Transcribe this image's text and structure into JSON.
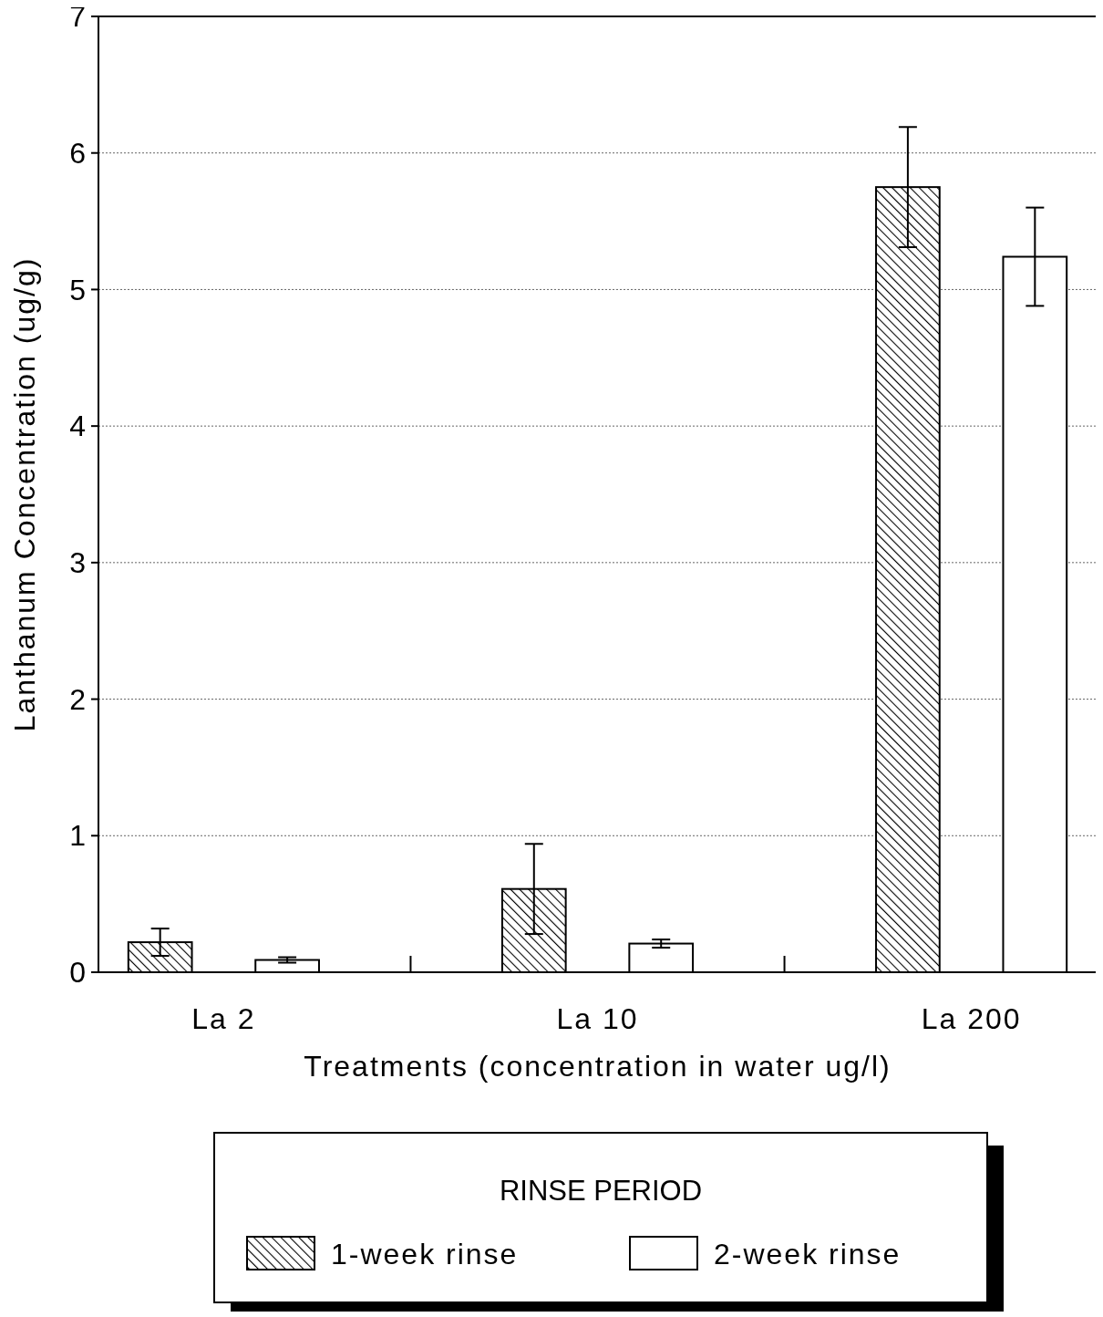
{
  "chart_data": {
    "type": "bar",
    "xlabel": "Treatments (concentration in water ug/l)",
    "ylabel": "Lanthanum Concentration (ug/g)",
    "legend_title": "RINSE PERIOD",
    "categories": [
      "La 2",
      "La 10",
      "La 200"
    ],
    "series": [
      {
        "name": "1-week rinse",
        "color": "#000000",
        "values": [
          0.22,
          0.61,
          5.75
        ],
        "errors": [
          0.1,
          0.33,
          0.44
        ]
      },
      {
        "name": "2-week rinse",
        "color": "#ffffff",
        "values": [
          0.09,
          0.21,
          5.24
        ],
        "errors": [
          0.02,
          0.03,
          0.36
        ]
      }
    ],
    "ylim": [
      0,
      7
    ],
    "yticks": [
      0,
      1,
      2,
      3,
      4,
      5,
      6,
      7
    ],
    "grid": "y",
    "legend": "bottom"
  }
}
